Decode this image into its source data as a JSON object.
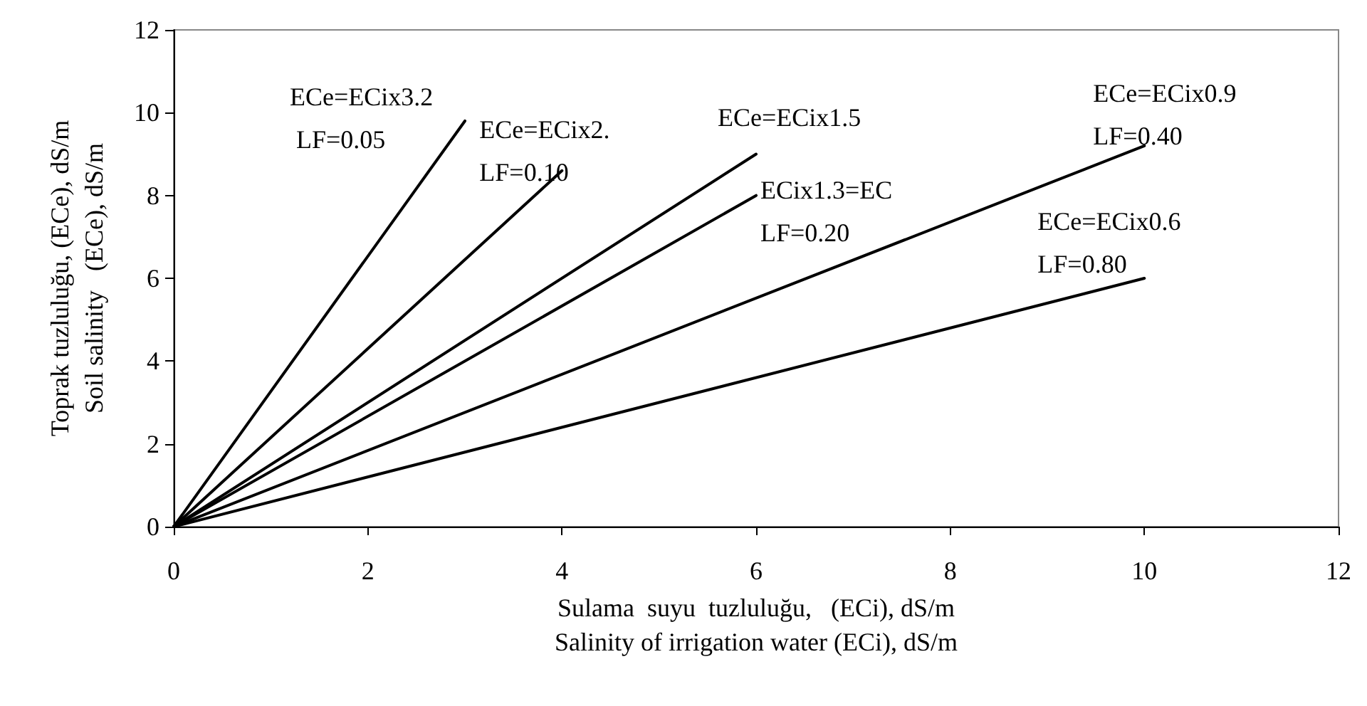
{
  "chart_data": {
    "type": "line",
    "xlabel": "Sulama  suyu  tuzluluğu,   (ECi), dS/m\nSalinity of irrigation water (ECi), dS/m",
    "ylabel": "Toprak tuzluluğu, (ECe), dS/m\nSoil salinity   (ECe), dS/m",
    "series": [
      {
        "color": "#000000",
        "x": [
          0,
          3
        ],
        "values": [
          0,
          9.8
        ]
      },
      {
        "color": "#000000",
        "x": [
          0,
          4
        ],
        "values": [
          0,
          8.6
        ]
      },
      {
        "color": "#000000",
        "x": [
          0,
          6
        ],
        "values": [
          0,
          9.0
        ]
      },
      {
        "color": "#000000",
        "x": [
          0,
          6
        ],
        "values": [
          0,
          8.0
        ]
      },
      {
        "color": "#000000",
        "x": [
          0,
          10
        ],
        "values": [
          0,
          9.2
        ]
      },
      {
        "color": "#000000",
        "x": [
          0,
          10
        ],
        "values": [
          0,
          6.0
        ]
      }
    ],
    "annotations": [
      {
        "text": "ECe=ECix3.2\n LF=0.05",
        "x": 3,
        "y": 9.8
      },
      {
        "text": "ECe=ECix2.\nLF=0.10",
        "x": 4,
        "y": 8.6
      },
      {
        "text": "ECe=ECix1.5",
        "x": 6,
        "y": 9.0
      },
      {
        "text": "ECix1.3=EC\nLF=0.20",
        "x": 6,
        "y": 8.0
      },
      {
        "text": "ECe=ECix0.9\nLF=0.40",
        "x": 10,
        "y": 9.2
      },
      {
        "text": "ECe=ECix0.6\nLF=0.80",
        "x": 10,
        "y": 6.0
      }
    ],
    "xlim": [
      0,
      12
    ],
    "ylim": [
      0,
      12
    ],
    "xticks": [
      0,
      2,
      4,
      6,
      8,
      10,
      12
    ],
    "yticks": [
      0,
      2,
      4,
      6,
      8,
      10,
      12
    ],
    "grid": false,
    "marker": "none",
    "line_style": "solid"
  }
}
